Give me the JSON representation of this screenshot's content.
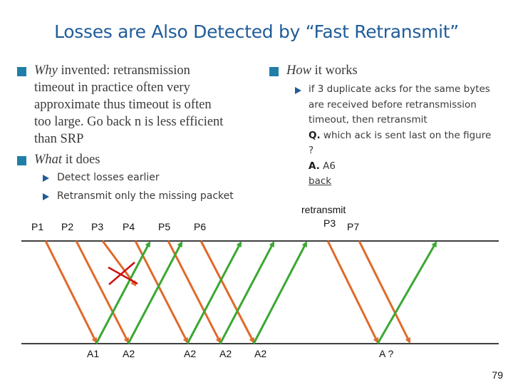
{
  "title": "Losses are Also Detected by “Fast Retransmit”",
  "left": {
    "bullet1": {
      "italic": "Why",
      "text": " invented: retransmission",
      "lines": [
        "timeout in practice often very",
        "approximate thus timeout is often",
        "too large. Go back n is less efficient",
        "than SRP"
      ]
    },
    "bullet2": {
      "italic": "What",
      "text": " it does"
    },
    "subs": [
      "Detect losses earlier",
      "Retransmit only the missing packet"
    ]
  },
  "right": {
    "bullet": {
      "italic": "How",
      "text": " it works"
    },
    "lines": [
      "if 3 duplicate acks for the same bytes",
      "are received before retransmission",
      "timeout, then retransmit"
    ],
    "q_label": "Q.",
    "q_text": " which ack is sent last on the figure",
    "q_cont": "?",
    "a_label": "A.",
    "a_text": "  A6",
    "back": "back"
  },
  "diagram": {
    "retransmit_label": "retransmit",
    "top_labels": [
      "P1",
      "P2",
      "P3",
      "P4",
      "P5",
      "P6",
      "P3",
      "P7"
    ],
    "bottom_labels": [
      "A1",
      "A2",
      "A2",
      "A2",
      "A2",
      "A ?"
    ],
    "colors": {
      "packet": "#e06a2a",
      "ack": "#3aa832",
      "loss": "#cc1111",
      "axis": "#000000"
    }
  },
  "page_number": "79"
}
